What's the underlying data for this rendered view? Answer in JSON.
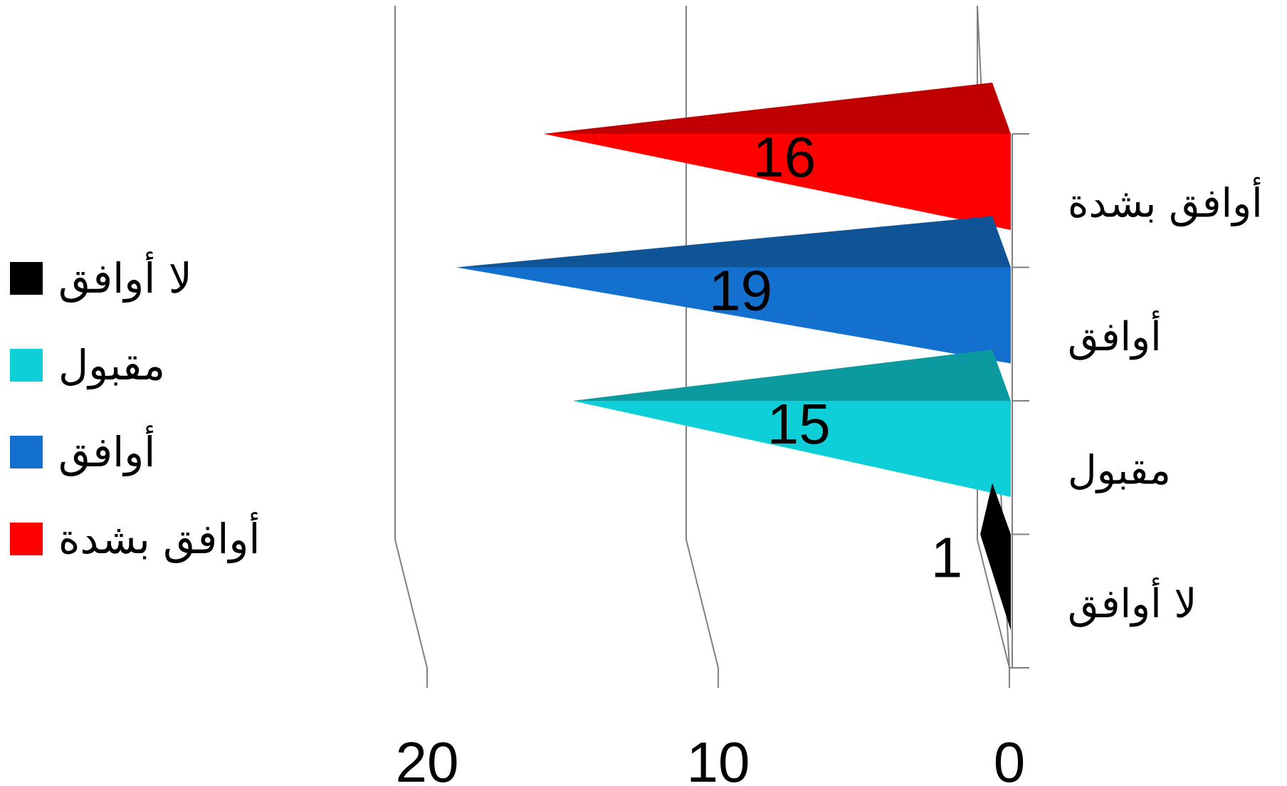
{
  "chart_data": {
    "type": "bar",
    "orientation": "horizontal",
    "style": "3d-pyramid",
    "x_axis_reversed": true,
    "categories": [
      "أوافق بشدة",
      "أوافق",
      "مقبول",
      "لا أوافق"
    ],
    "values": [
      16,
      19,
      15,
      1
    ],
    "data_labels": [
      "16",
      "19",
      "15",
      "1"
    ],
    "xlim": [
      0,
      20
    ],
    "xticks": [
      0,
      10,
      20
    ],
    "xtick_labels": [
      "0",
      "10",
      "20"
    ],
    "grid": true,
    "legend_position": "left",
    "legend": [
      {
        "label": "لا أوافق",
        "color": "#000000"
      },
      {
        "label": "مقبول",
        "color": "#0ECFD8"
      },
      {
        "label": "أوافق",
        "color": "#1470CE"
      },
      {
        "label": "أوافق بشدة",
        "color": "#FF0000"
      }
    ],
    "colors": {
      "أوافق بشدة": {
        "front": "#FF0000",
        "top": "#C00000"
      },
      "أوافق": {
        "front": "#1470CE",
        "top": "#0F5496"
      },
      "مقبول": {
        "front": "#0ECFD8",
        "top": "#0A9AA0"
      },
      "لا أوافق": {
        "front": "#000000",
        "top": "#000000"
      }
    },
    "axis_color": "#808080"
  }
}
